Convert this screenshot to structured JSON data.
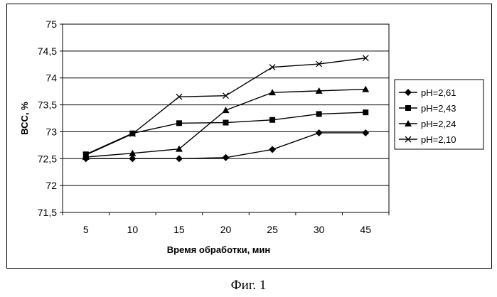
{
  "chart_data": {
    "type": "line",
    "categories": [
      "5",
      "10",
      "15",
      "20",
      "25",
      "30",
      "45"
    ],
    "xlabel": "Время обработки, мин",
    "ylabel": "ВСС, %",
    "ylim": [
      71.5,
      75
    ],
    "yticks": [
      "71,5",
      "72",
      "72,5",
      "73",
      "73,5",
      "74",
      "74,5",
      "75"
    ],
    "grid": "horizontal",
    "legend": "right",
    "series": [
      {
        "name": "pH=2,61",
        "marker": "diamond",
        "values": [
          72.5,
          72.5,
          72.5,
          72.52,
          72.67,
          72.98,
          72.98
        ]
      },
      {
        "name": "pH=2,43",
        "marker": "square",
        "values": [
          72.58,
          72.97,
          73.16,
          73.17,
          73.22,
          73.33,
          73.36
        ]
      },
      {
        "name": "pH=2,24",
        "marker": "triangle",
        "values": [
          72.53,
          72.6,
          72.68,
          73.4,
          73.73,
          73.76,
          73.79
        ]
      },
      {
        "name": "pH=2,10",
        "marker": "cross",
        "values": [
          72.57,
          72.96,
          73.65,
          73.67,
          74.2,
          74.26,
          74.37
        ]
      }
    ]
  },
  "caption": "Фиг. 1"
}
